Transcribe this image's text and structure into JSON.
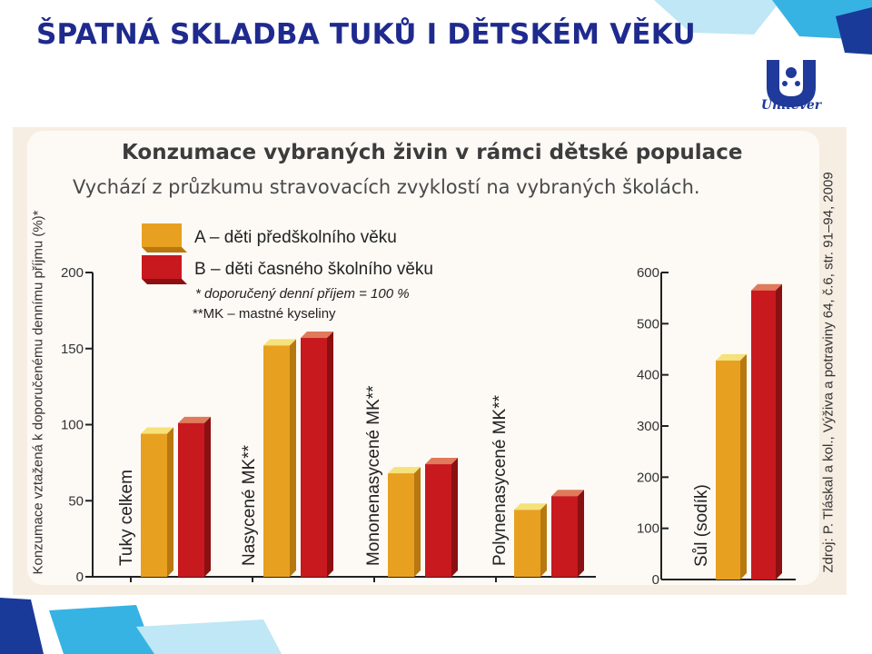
{
  "slide": {
    "title": "ŠPATNÁ SKLADBA TUKŮ I DĚTSKÉM VĚKU",
    "logo_text": "Unilever"
  },
  "chart_data": {
    "type": "bar",
    "title": "Konzumace vybraných živin v rámci dětské populace",
    "subtitle": "Vychází z průzkumu stravovacích zvyklostí na vybraných školách.",
    "ylabel": "Konzumace vztažená k doporučenému dennímu příjmu (%)*",
    "source": "Zdroj: P. Tláskal a kol., Výživa a potraviny 64, č.6, str. 91–94, 2009",
    "legend_position": "top-left",
    "legend": [
      {
        "label": "A – děti předškolního věku",
        "color": "#e8a020"
      },
      {
        "label": "B – děti časného školního věku",
        "color": "#c8191e"
      }
    ],
    "notes": [
      "* doporučený denní příjem = 100 %",
      "**MK – mastné kyseliny"
    ],
    "charts": [
      {
        "categories": [
          "Tuky celkem",
          "Nasycené MK**",
          "Mononenasycené MK**",
          "Polynenasycené MK**"
        ],
        "series": [
          {
            "name": "A – děti předškolního věku",
            "values": [
              94,
              152,
              68,
              44
            ]
          },
          {
            "name": "B – děti časného školního věku",
            "values": [
              101,
              157,
              74,
              53
            ]
          }
        ],
        "ylim": [
          0,
          200
        ],
        "yticks": [
          "0",
          "50",
          "100",
          "150",
          "200"
        ]
      },
      {
        "categories": [
          "Sůl (sodík)"
        ],
        "series": [
          {
            "name": "A – děti předškolního věku",
            "values": [
              428
            ]
          },
          {
            "name": "B – děti časného školního věku",
            "values": [
              565
            ]
          }
        ],
        "ylim": [
          0,
          600
        ],
        "yticks": [
          "0",
          "100",
          "200",
          "300",
          "400",
          "500",
          "600"
        ]
      }
    ]
  }
}
